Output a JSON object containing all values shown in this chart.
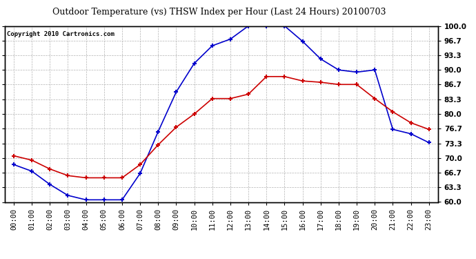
{
  "title": "Outdoor Temperature (vs) THSW Index per Hour (Last 24 Hours) 20100703",
  "copyright": "Copyright 2010 Cartronics.com",
  "hours": [
    "00:00",
    "01:00",
    "02:00",
    "03:00",
    "04:00",
    "05:00",
    "06:00",
    "07:00",
    "08:00",
    "09:00",
    "10:00",
    "11:00",
    "12:00",
    "13:00",
    "14:00",
    "15:00",
    "16:00",
    "17:00",
    "18:00",
    "19:00",
    "20:00",
    "21:00",
    "22:00",
    "23:00"
  ],
  "temp": [
    70.5,
    69.5,
    67.5,
    66.0,
    65.5,
    65.5,
    65.5,
    68.5,
    73.0,
    77.0,
    80.0,
    83.5,
    83.5,
    84.5,
    88.5,
    88.5,
    87.5,
    87.2,
    86.7,
    86.7,
    83.5,
    80.5,
    78.0,
    76.5
  ],
  "thsw": [
    68.5,
    67.0,
    64.0,
    61.5,
    60.5,
    60.5,
    60.5,
    66.5,
    76.0,
    85.0,
    91.5,
    95.5,
    97.0,
    100.0,
    100.0,
    100.0,
    96.5,
    92.5,
    90.0,
    89.5,
    90.0,
    76.5,
    75.5,
    73.5
  ],
  "temp_color": "#cc0000",
  "thsw_color": "#0000cc",
  "bg_color": "#ffffff",
  "plot_bg": "#ffffff",
  "grid_color": "#aaaaaa",
  "ylim_min": 60.0,
  "ylim_max": 100.0,
  "yticks": [
    60.0,
    63.3,
    66.7,
    70.0,
    73.3,
    76.7,
    80.0,
    83.3,
    86.7,
    90.0,
    93.3,
    96.7,
    100.0
  ],
  "title_fontsize": 9,
  "tick_fontsize": 7.5,
  "copyright_fontsize": 6.5
}
